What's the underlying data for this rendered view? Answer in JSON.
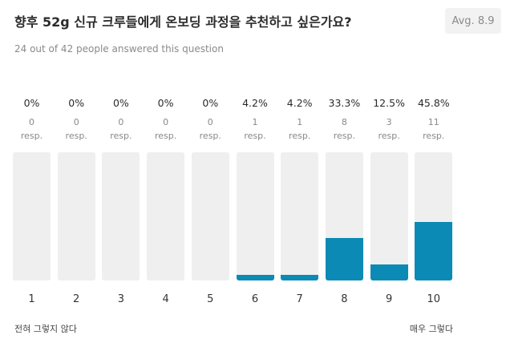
{
  "question": {
    "title": "향후 52g 신규 크루들에게 온보딩 과정을 추천하고 싶은가요?",
    "average_label": "Avg. 8.9",
    "answered_text": "24 out of 42 people answered this question"
  },
  "scale": {
    "low_label": "전혀 그렇지 않다",
    "high_label": "매우 그렇다"
  },
  "colors": {
    "bar_fill": "#0a8ab5",
    "bar_track": "#efefef"
  },
  "chart_data": {
    "type": "bar",
    "title": "향후 52g 신규 크루들에게 온보딩 과정을 추천하고 싶은가요?",
    "categories": [
      "1",
      "2",
      "3",
      "4",
      "5",
      "6",
      "7",
      "8",
      "9",
      "10"
    ],
    "values": [
      0,
      0,
      0,
      0,
      0,
      4.2,
      4.2,
      33.3,
      12.5,
      45.8
    ],
    "percent_labels": [
      "0%",
      "0%",
      "0%",
      "0%",
      "0%",
      "4.2%",
      "4.2%",
      "33.3%",
      "12.5%",
      "45.8%"
    ],
    "counts": [
      "0",
      "0",
      "0",
      "0",
      "0",
      "1",
      "1",
      "8",
      "3",
      "11"
    ],
    "count_unit": "resp.",
    "ylim": [
      0,
      100
    ],
    "grid": false,
    "legend": "none"
  }
}
